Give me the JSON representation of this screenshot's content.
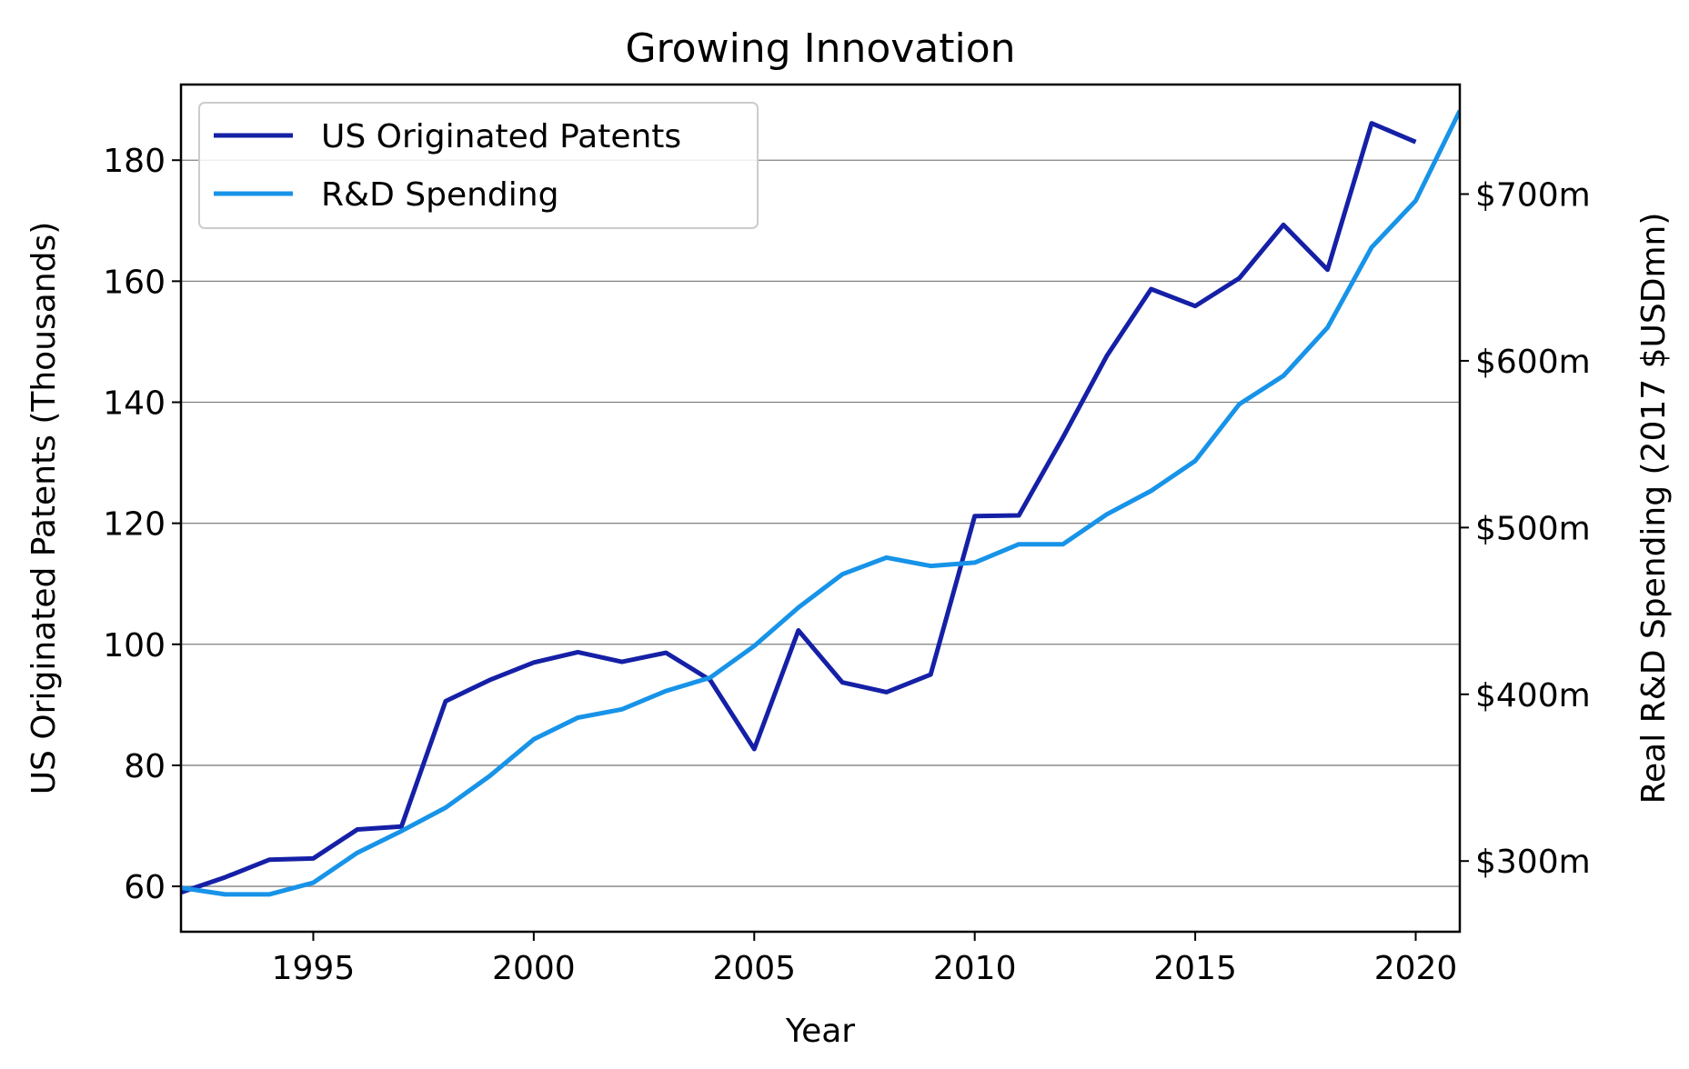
{
  "chart_data": {
    "type": "line",
    "title": "Growing Innovation",
    "xlabel": "Year",
    "ylabel": "US Originated Patents (Thousands)",
    "y2label": "Real R&D Spending (2017 $USDmn)",
    "xlim": [
      1992,
      2021
    ],
    "ylim": [
      52.5,
      192.5
    ],
    "y2lim": [
      257.6,
      765.7
    ],
    "x_ticks": [
      1995,
      2000,
      2005,
      2010,
      2015,
      2020
    ],
    "y_ticks": [
      60,
      80,
      100,
      120,
      140,
      160,
      180
    ],
    "y2_ticks": [
      {
        "value": 300,
        "label": "$300m"
      },
      {
        "value": 400,
        "label": "$400m"
      },
      {
        "value": 500,
        "label": "$500m"
      },
      {
        "value": 600,
        "label": "$600m"
      },
      {
        "value": 700,
        "label": "$700m"
      }
    ],
    "grid": "horizontal",
    "legend": "top-left",
    "series": [
      {
        "name": "US Originated Patents",
        "axis": "left",
        "color": "#1520a6",
        "x": [
          1992,
          1993,
          1994,
          1995,
          1996,
          1997,
          1998,
          1999,
          2000,
          2001,
          2002,
          2003,
          2004,
          2005,
          2006,
          2007,
          2008,
          2009,
          2010,
          2011,
          2012,
          2013,
          2014,
          2015,
          2016,
          2017,
          2018,
          2019,
          2020
        ],
        "y": [
          59.0,
          61.5,
          64.4,
          64.6,
          69.4,
          69.9,
          90.6,
          94.1,
          97.0,
          98.7,
          97.1,
          98.6,
          94.1,
          82.7,
          102.3,
          93.7,
          92.1,
          95.0,
          121.2,
          121.3,
          134.2,
          147.7,
          158.7,
          155.9,
          160.5,
          169.3,
          161.9,
          186.1,
          183.0
        ]
      },
      {
        "name": "R&D Spending",
        "axis": "right",
        "color": "#1793e8",
        "x": [
          1992,
          1993,
          1994,
          1995,
          1996,
          1997,
          1998,
          1999,
          2000,
          2001,
          2002,
          2003,
          2004,
          2005,
          2006,
          2007,
          2008,
          2009,
          2010,
          2011,
          2012,
          2013,
          2014,
          2015,
          2016,
          2017,
          2018,
          2019,
          2020,
          2021
        ],
        "y": [
          284,
          280,
          280,
          287,
          305,
          318,
          332,
          351,
          373,
          386,
          391,
          402,
          410,
          429,
          452,
          472,
          482,
          477,
          479,
          490,
          490,
          508,
          522,
          540,
          574,
          591,
          620,
          668,
          696,
          750
        ]
      }
    ]
  }
}
